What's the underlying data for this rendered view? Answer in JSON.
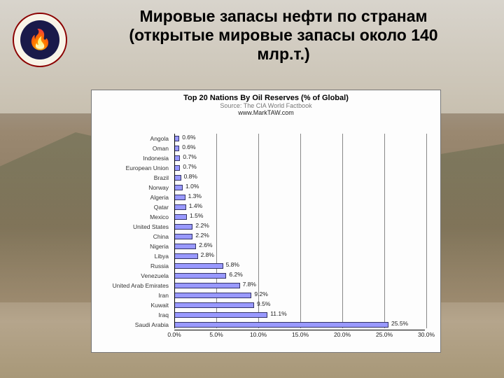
{
  "header": {
    "title": "Мировые запасы нефти по странам\n(открытые мировые запасы около 140\nмлр.т.)",
    "title_fontsize": 23,
    "title_color": "#000000"
  },
  "logo": {
    "bg": "#f8f4e8",
    "ring": "#8b0000",
    "inner": "#1a1a4a",
    "emoji": "🔥"
  },
  "chart": {
    "type": "bar-horizontal",
    "title": "Top 20 Nations By Oil Reserves (% of Global)",
    "title_fontsize": 11,
    "subtitle1": "Source: The CIA World Factbook",
    "subtitle2": "www.MarkTAW.com",
    "sub_fontsize": 9,
    "label_fontsize": 8.5,
    "value_fontsize": 8.5,
    "background": "#fdfdfd",
    "grid_color": "#888888",
    "bar_color": "#9999ff",
    "bar_border": "#333366",
    "xmin": 0.0,
    "xmax": 30.0,
    "xtick_step": 5.0,
    "xtick_format_suffix": "%",
    "xtick_decimals": 1,
    "categories": [
      "Angola",
      "Oman",
      "Indonesia",
      "European Union",
      "Brazil",
      "Norway",
      "Algeria",
      "Qatar",
      "Mexico",
      "United States",
      "China",
      "Nigeria",
      "Libya",
      "Russia",
      "Venezuela",
      "United Arab Emirates",
      "Iran",
      "Kuwait",
      "Iraq",
      "Saudi Arabia"
    ],
    "values": [
      0.6,
      0.6,
      0.7,
      0.7,
      0.8,
      1.0,
      1.3,
      1.4,
      1.5,
      2.2,
      2.2,
      2.6,
      2.8,
      5.8,
      6.2,
      7.8,
      9.2,
      9.5,
      11.1,
      25.5
    ],
    "value_labels": [
      "0.6%",
      "0.6%",
      "0.7%",
      "0.7%",
      "0.8%",
      "1.0%",
      "1.3%",
      "1.4%",
      "1.5%",
      "2.2%",
      "2.2%",
      "2.6%",
      "2.8%",
      "5.8%",
      "6.2%",
      "7.8%",
      "9.2%",
      "9.5%",
      "11.1%",
      "25.5%"
    ]
  }
}
